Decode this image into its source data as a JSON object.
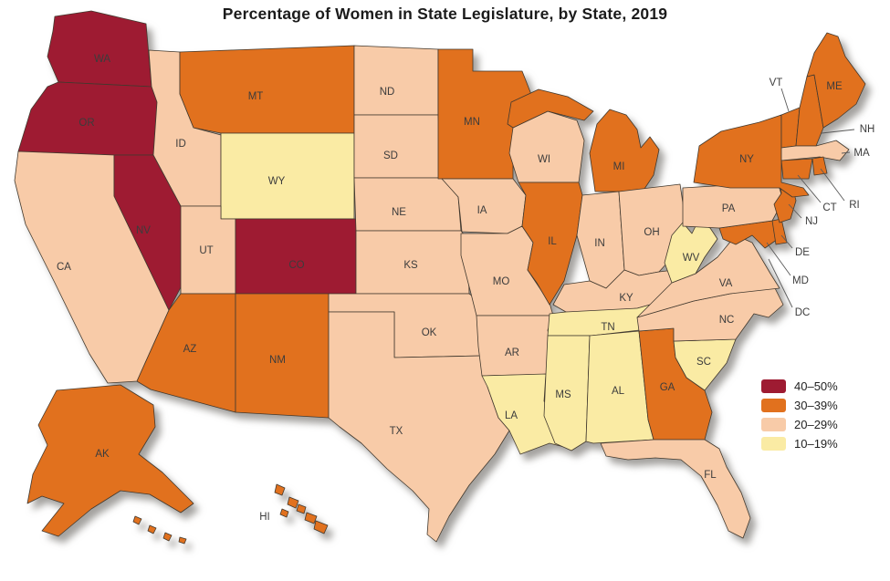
{
  "title": "Percentage of Women in State Legislature, by State, 2019",
  "colors": {
    "40-50": "#9e1b32",
    "30-39": "#e1711e",
    "20-29": "#f8cba8",
    "10-19": "#faeba4"
  },
  "legend": [
    {
      "label": "40–50%",
      "category": "40-50"
    },
    {
      "label": "30–39%",
      "category": "30-39"
    },
    {
      "label": "20–29%",
      "category": "20-29"
    },
    {
      "label": "10–19%",
      "category": "10-19"
    }
  ],
  "dc_label": "DC",
  "states": [
    {
      "abbr": "WA",
      "category": "40-50"
    },
    {
      "abbr": "OR",
      "category": "40-50"
    },
    {
      "abbr": "CA",
      "category": "20-29"
    },
    {
      "abbr": "NV",
      "category": "40-50"
    },
    {
      "abbr": "ID",
      "category": "20-29"
    },
    {
      "abbr": "MT",
      "category": "30-39"
    },
    {
      "abbr": "WY",
      "category": "10-19"
    },
    {
      "abbr": "UT",
      "category": "20-29"
    },
    {
      "abbr": "CO",
      "category": "40-50"
    },
    {
      "abbr": "AZ",
      "category": "30-39"
    },
    {
      "abbr": "NM",
      "category": "30-39"
    },
    {
      "abbr": "ND",
      "category": "20-29"
    },
    {
      "abbr": "SD",
      "category": "20-29"
    },
    {
      "abbr": "NE",
      "category": "20-29"
    },
    {
      "abbr": "KS",
      "category": "20-29"
    },
    {
      "abbr": "OK",
      "category": "20-29"
    },
    {
      "abbr": "TX",
      "category": "20-29"
    },
    {
      "abbr": "MN",
      "category": "30-39"
    },
    {
      "abbr": "IA",
      "category": "20-29"
    },
    {
      "abbr": "MO",
      "category": "20-29"
    },
    {
      "abbr": "AR",
      "category": "20-29"
    },
    {
      "abbr": "LA",
      "category": "10-19"
    },
    {
      "abbr": "WI",
      "category": "20-29"
    },
    {
      "abbr": "IL",
      "category": "30-39"
    },
    {
      "abbr": "MI",
      "category": "30-39"
    },
    {
      "abbr": "IN",
      "category": "20-29"
    },
    {
      "abbr": "OH",
      "category": "20-29"
    },
    {
      "abbr": "KY",
      "category": "20-29"
    },
    {
      "abbr": "TN",
      "category": "10-19"
    },
    {
      "abbr": "MS",
      "category": "10-19"
    },
    {
      "abbr": "AL",
      "category": "10-19"
    },
    {
      "abbr": "GA",
      "category": "30-39"
    },
    {
      "abbr": "FL",
      "category": "20-29"
    },
    {
      "abbr": "SC",
      "category": "10-19"
    },
    {
      "abbr": "NC",
      "category": "20-29"
    },
    {
      "abbr": "VA",
      "category": "20-29"
    },
    {
      "abbr": "WV",
      "category": "10-19"
    },
    {
      "abbr": "MD",
      "category": "30-39"
    },
    {
      "abbr": "DE",
      "category": "30-39"
    },
    {
      "abbr": "PA",
      "category": "20-29"
    },
    {
      "abbr": "NJ",
      "category": "30-39"
    },
    {
      "abbr": "NY",
      "category": "30-39"
    },
    {
      "abbr": "VT",
      "category": "30-39"
    },
    {
      "abbr": "NH",
      "category": "30-39"
    },
    {
      "abbr": "MA",
      "category": "20-29"
    },
    {
      "abbr": "CT",
      "category": "30-39"
    },
    {
      "abbr": "RI",
      "category": "30-39"
    },
    {
      "abbr": "ME",
      "category": "30-39"
    },
    {
      "abbr": "AK",
      "category": "30-39"
    },
    {
      "abbr": "HI",
      "category": "30-39"
    }
  ]
}
